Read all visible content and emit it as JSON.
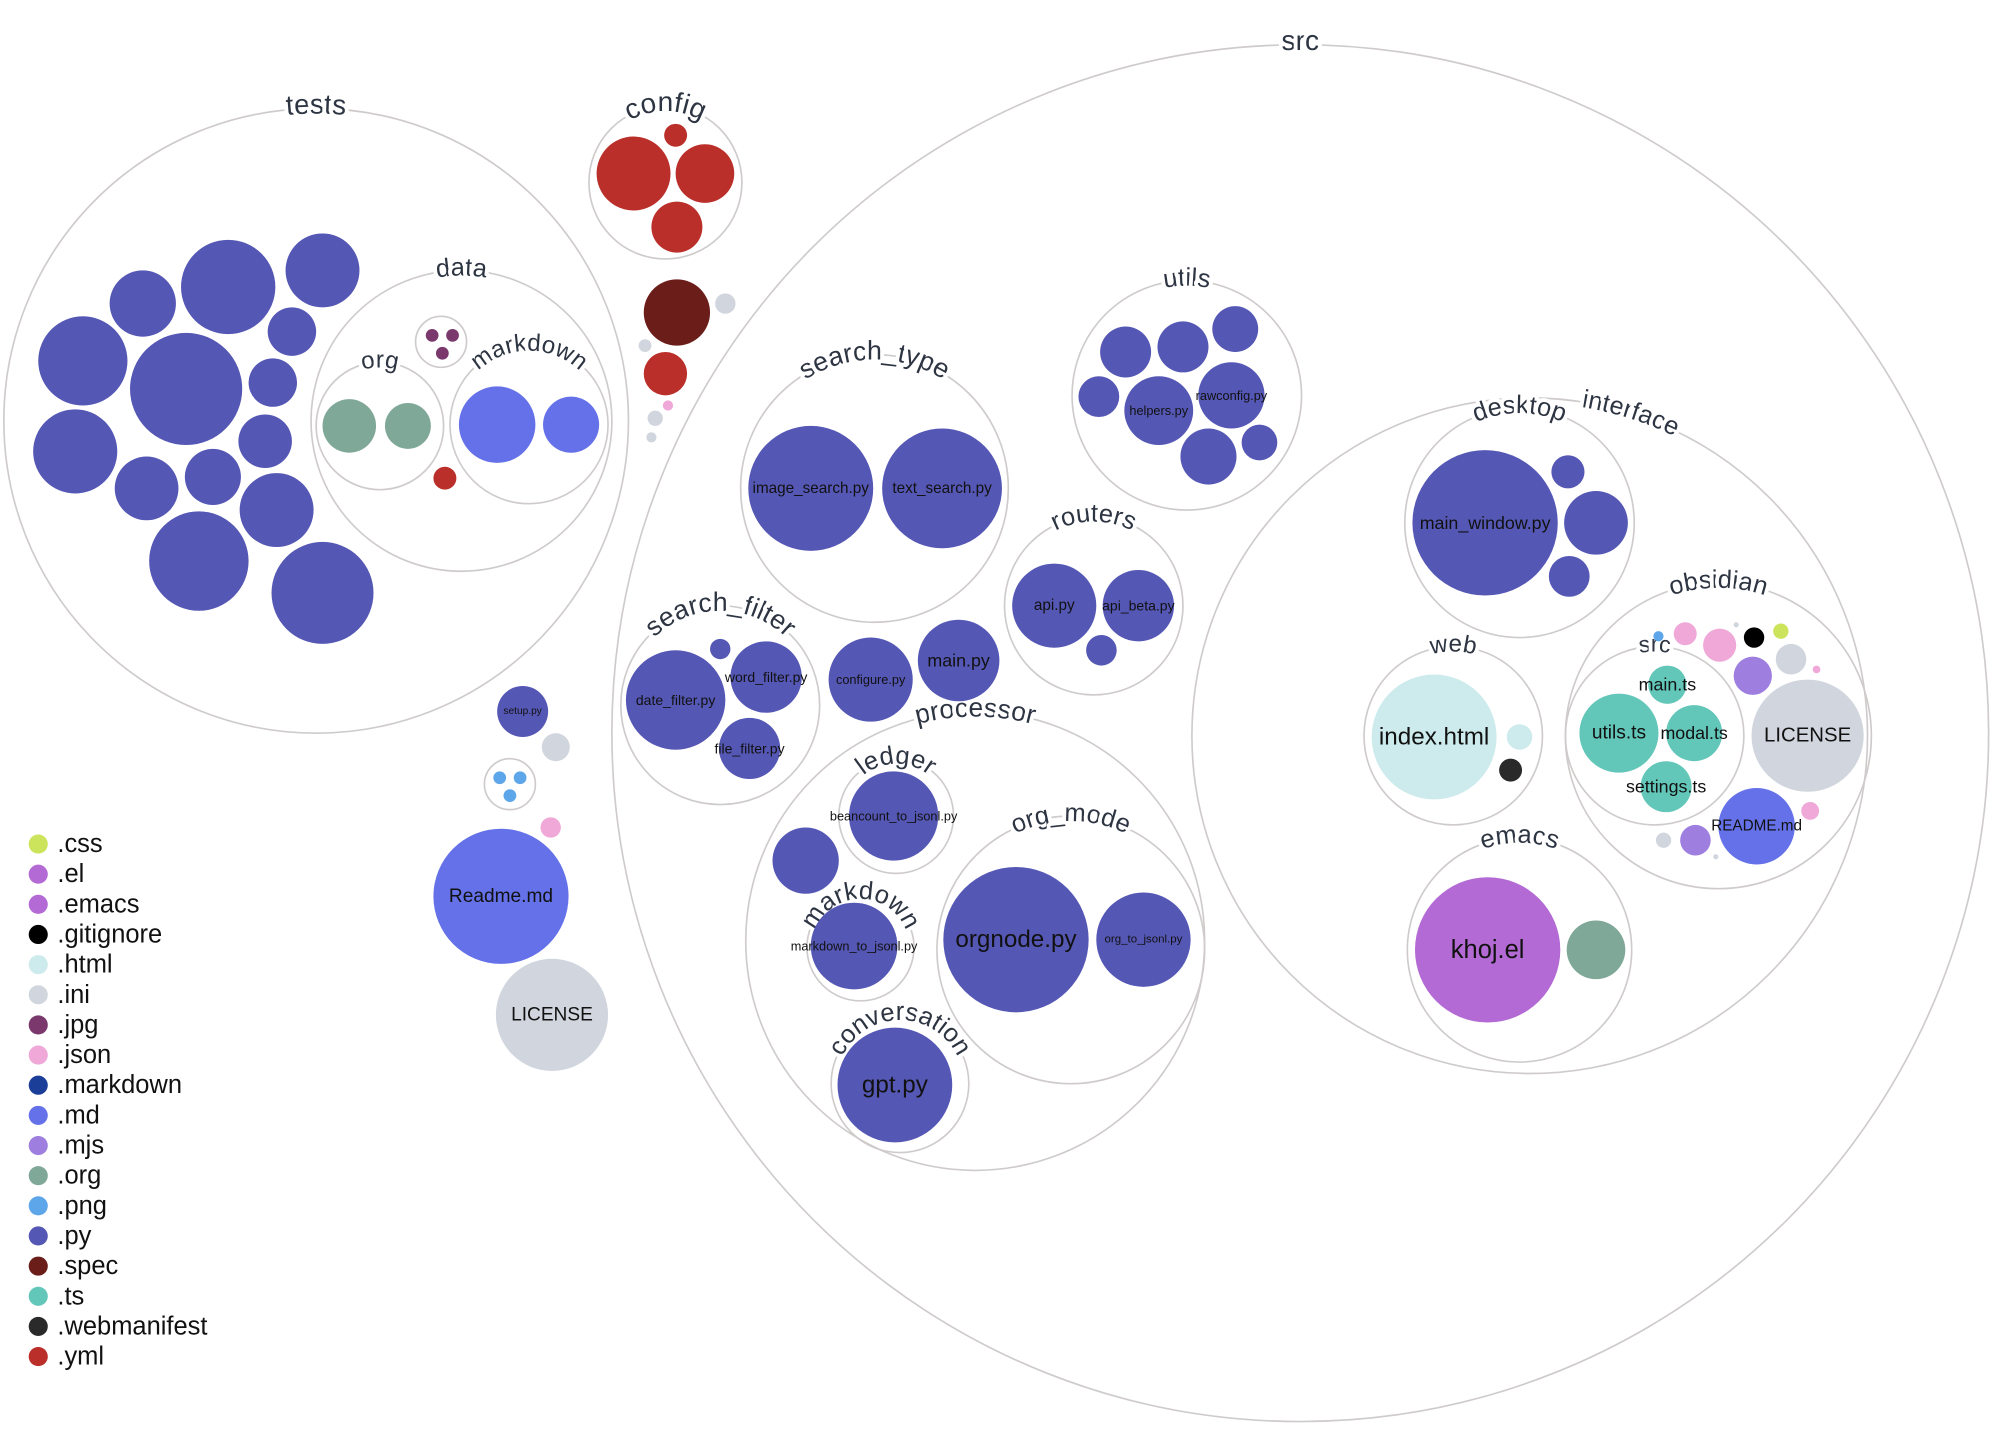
{
  "colors": {
    "css": "#cce35c",
    "el": "#b36ad4",
    "emacs": "#b36ad4",
    "gitignore": "#000000",
    "html": "#cdebec",
    "ini": "#d1d6de",
    "jpg": "#7a386d",
    "json": "#efa8d8",
    "markdown": "#1b3e99",
    "md": "#6571e8",
    "mjs": "#9e7fe0",
    "org": "#80a898",
    "png": "#5ea6ea",
    "py": "#5557b5",
    "spec": "#6b1d1a",
    "ts": "#62c6b8",
    "webmanifest": "#2a2a2a",
    "yml": "#bb2f2a"
  },
  "legend": [
    ".css",
    ".el",
    ".emacs",
    ".gitignore",
    ".html",
    ".ini",
    ".jpg",
    ".json",
    ".markdown",
    ".md",
    ".mjs",
    ".org",
    ".png",
    ".py",
    ".spec",
    ".ts",
    ".webmanifest",
    ".yml"
  ],
  "legend_ext": [
    "css",
    "el",
    "emacs",
    "gitignore",
    "html",
    "ini",
    "jpg",
    "json",
    "markdown",
    "md",
    "mjs",
    "org",
    "png",
    "py",
    "spec",
    "ts",
    "webmanifest",
    "yml"
  ],
  "folders": [
    {
      "name": "tests"
    },
    {
      "name": "data"
    },
    {
      "name": "org"
    },
    {
      "name": "markdown"
    },
    {
      "name": ""
    },
    {
      "name": "config"
    },
    {
      "name": "src"
    },
    {
      "name": "utils"
    },
    {
      "name": "search_type"
    },
    {
      "name": "routers"
    },
    {
      "name": "search_filter"
    },
    {
      "name": "processor"
    },
    {
      "name": "ledger"
    },
    {
      "name": "markdown"
    },
    {
      "name": "org_mode"
    },
    {
      "name": "conversation"
    },
    {
      "name": "interface"
    },
    {
      "name": "desktop"
    },
    {
      "name": "web"
    },
    {
      "name": "obsidian"
    },
    {
      "name": "src"
    },
    {
      "name": "emacs"
    },
    {
      "name": ""
    }
  ],
  "files": [
    {
      "ext": "py"
    },
    {
      "ext": "py"
    },
    {
      "ext": "py"
    },
    {
      "ext": "py"
    },
    {
      "ext": "py"
    },
    {
      "ext": "py"
    },
    {
      "ext": "py"
    },
    {
      "ext": "py"
    },
    {
      "ext": "py"
    },
    {
      "ext": "py"
    },
    {
      "ext": "py"
    },
    {
      "ext": "py"
    },
    {
      "ext": "py"
    },
    {
      "ext": "py"
    },
    {
      "ext": "org"
    },
    {
      "ext": "org"
    },
    {
      "ext": "md"
    },
    {
      "ext": "md"
    },
    {
      "ext": "jpg"
    },
    {
      "ext": "jpg"
    },
    {
      "ext": "jpg"
    },
    {
      "ext": "yml"
    },
    {
      "ext": "yml"
    },
    {
      "ext": "yml"
    },
    {
      "ext": "yml"
    },
    {
      "ext": "yml"
    },
    {
      "ext": "spec"
    },
    {
      "ext": "ini"
    },
    {
      "ext": "yml"
    },
    {
      "ext": "ini"
    },
    {
      "ext": "ini"
    },
    {
      "ext": "json"
    },
    {
      "ext": "ini"
    },
    {
      "ext": "py",
      "label": "setup.py"
    },
    {
      "ext": "ini"
    },
    {
      "ext": "png"
    },
    {
      "ext": "png"
    },
    {
      "ext": "png"
    },
    {
      "ext": "json"
    },
    {
      "ext": "md",
      "label": "Readme.md"
    },
    {
      "ext": "ini",
      "label": "LICENSE"
    },
    {
      "ext": "py",
      "label": "image_search.py"
    },
    {
      "ext": "py",
      "label": "text_search.py"
    },
    {
      "ext": "py"
    },
    {
      "ext": "py"
    },
    {
      "ext": "py"
    },
    {
      "ext": "py"
    },
    {
      "ext": "py",
      "label": "helpers.py"
    },
    {
      "ext": "py",
      "label": "rawconfig.py"
    },
    {
      "ext": "py"
    },
    {
      "ext": "py"
    },
    {
      "ext": "py",
      "label": "api.py"
    },
    {
      "ext": "py",
      "label": "api_beta.py"
    },
    {
      "ext": "py"
    },
    {
      "ext": "py",
      "label": "date_filter.py"
    },
    {
      "ext": "py",
      "label": "word_filter.py"
    },
    {
      "ext": "py",
      "label": "file_filter.py"
    },
    {
      "ext": "py"
    },
    {
      "ext": "py",
      "label": "configure.py"
    },
    {
      "ext": "py",
      "label": "main.py"
    },
    {
      "ext": "py"
    },
    {
      "ext": "py",
      "label": "beancount_to_jsonl.py"
    },
    {
      "ext": "py",
      "label": "markdown_to_jsonl.py"
    },
    {
      "ext": "py",
      "label": "orgnode.py"
    },
    {
      "ext": "py",
      "label": "org_to_jsonl.py"
    },
    {
      "ext": "py",
      "label": "gpt.py"
    },
    {
      "ext": "py",
      "label": "main_window.py"
    },
    {
      "ext": "py"
    },
    {
      "ext": "py"
    },
    {
      "ext": "py"
    },
    {
      "ext": "html",
      "label": "index.html"
    },
    {
      "ext": "html"
    },
    {
      "ext": "webmanifest"
    },
    {
      "ext": "png"
    },
    {
      "ext": "json"
    },
    {
      "ext": "json"
    },
    {
      "ext": "ini"
    },
    {
      "ext": "gitignore"
    },
    {
      "ext": "css"
    },
    {
      "ext": "mjs"
    },
    {
      "ext": "ini"
    },
    {
      "ext": "json"
    },
    {
      "ext": "ini",
      "label": "LICENSE"
    },
    {
      "ext": "md",
      "label": "README.md"
    },
    {
      "ext": "json"
    },
    {
      "ext": "mjs"
    },
    {
      "ext": "ini"
    },
    {
      "ext": "ini"
    },
    {
      "ext": "ts",
      "label": "main.ts"
    },
    {
      "ext": "ts",
      "label": "utils.ts"
    },
    {
      "ext": "ts",
      "label": "modal.ts"
    },
    {
      "ext": "ts",
      "label": "settings.ts"
    },
    {
      "ext": "el",
      "label": "khoj.el"
    },
    {
      "ext": "org"
    }
  ]
}
